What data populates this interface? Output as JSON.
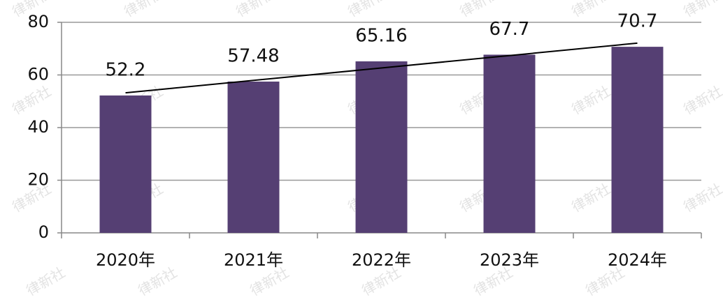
{
  "chart_data": {
    "type": "bar",
    "categories": [
      "2020年",
      "2021年",
      "2022年",
      "2023年",
      "2024年"
    ],
    "values": [
      52.2,
      57.48,
      65.16,
      67.7,
      70.7
    ],
    "value_labels": [
      "52.2",
      "57.48",
      "65.16",
      "67.7",
      "70.7"
    ],
    "color": "#553f73",
    "ylim": [
      0,
      80
    ],
    "yticks": [
      0,
      20,
      40,
      60,
      80
    ],
    "grid": true,
    "trendline": true,
    "watermark": "律新社"
  }
}
